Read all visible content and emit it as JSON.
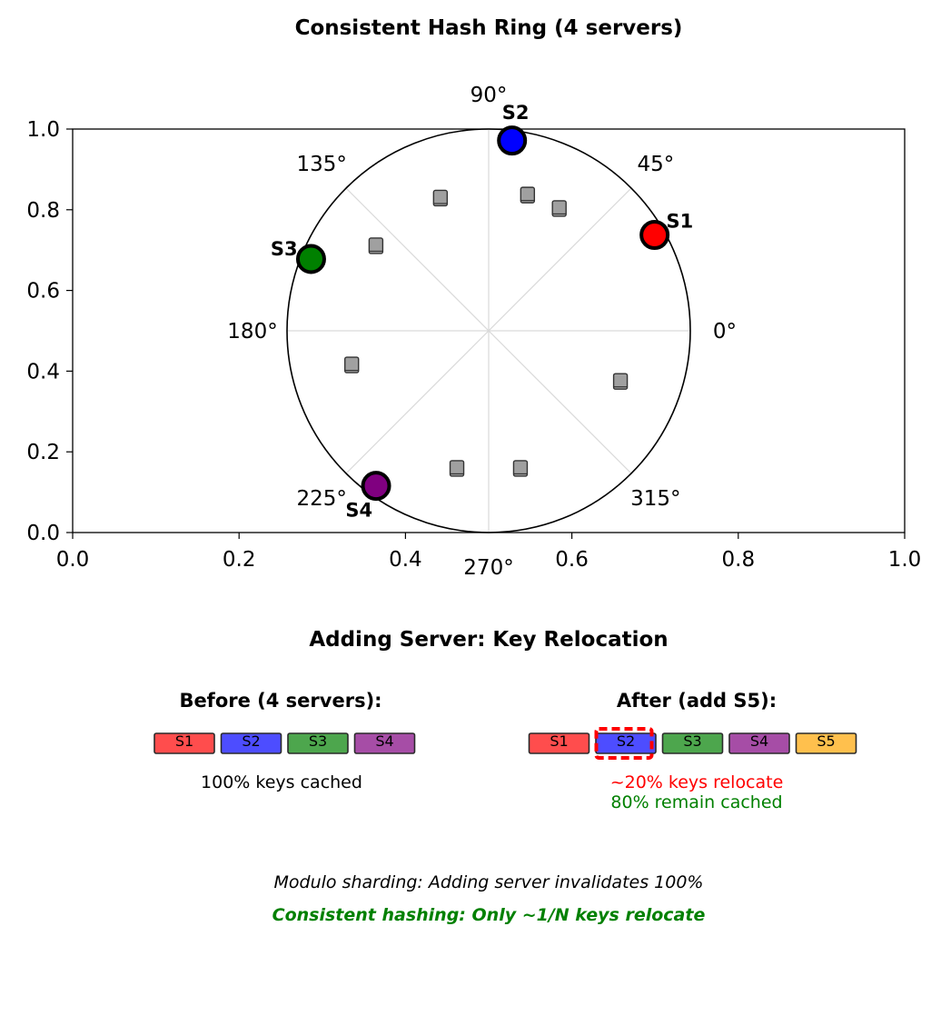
{
  "ring": {
    "title": "Consistent Hash Ring (4 servers)",
    "x_ticks": [
      "0.0",
      "0.2",
      "0.4",
      "0.6",
      "0.8",
      "1.0"
    ],
    "y_ticks": [
      "0.0",
      "0.2",
      "0.4",
      "0.6",
      "0.8",
      "1.0"
    ],
    "xlim": [
      0,
      1
    ],
    "ylim": [
      0,
      1
    ],
    "angle_labels": [
      {
        "deg": 0,
        "text": "0°"
      },
      {
        "deg": 45,
        "text": "45°"
      },
      {
        "deg": 90,
        "text": "90°"
      },
      {
        "deg": 135,
        "text": "135°"
      },
      {
        "deg": 180,
        "text": "180°"
      },
      {
        "deg": 225,
        "text": "225°"
      },
      {
        "deg": 270,
        "text": "270°"
      },
      {
        "deg": 315,
        "text": "315°"
      }
    ],
    "servers": [
      {
        "label": "S1",
        "angle": 30,
        "color": "#ff0000"
      },
      {
        "label": "S2",
        "angle": 83,
        "color": "#0000ff"
      },
      {
        "label": "S3",
        "angle": 158,
        "color": "#008000"
      },
      {
        "label": "S4",
        "angle": 234,
        "color": "#800080"
      }
    ],
    "key_angles": [
      60,
      74,
      110,
      143,
      194,
      257,
      283,
      339
    ],
    "key_color": "#a0a0a0"
  },
  "relocation": {
    "title": "Adding Server: Key Relocation",
    "before": {
      "title": "Before (4 servers):",
      "boxes": [
        {
          "label": "S1",
          "color": "#ff4d4d"
        },
        {
          "label": "S2",
          "color": "#4d4dff"
        },
        {
          "label": "S3",
          "color": "#4da64d"
        },
        {
          "label": "S4",
          "color": "#a64da6"
        }
      ],
      "caption": "100% keys cached"
    },
    "after": {
      "title": "After (add S5):",
      "boxes": [
        {
          "label": "S1",
          "color": "#ff4d4d"
        },
        {
          "label": "S2",
          "color": "#4d4dff",
          "highlight": true
        },
        {
          "label": "S3",
          "color": "#4da64d"
        },
        {
          "label": "S4",
          "color": "#a64da6"
        },
        {
          "label": "S5",
          "color": "#ffc04d"
        }
      ],
      "caption_relocate": "~20% keys relocate",
      "caption_remain": "80% remain cached",
      "relocate_color": "#ff0000",
      "remain_color": "#008000",
      "highlight_color": "#ff0000"
    },
    "note_modulo": "Modulo sharding: Adding server invalidates 100%",
    "note_consistent": "Consistent hashing: Only ~1/N keys relocate",
    "note_consistent_color": "#008000"
  }
}
